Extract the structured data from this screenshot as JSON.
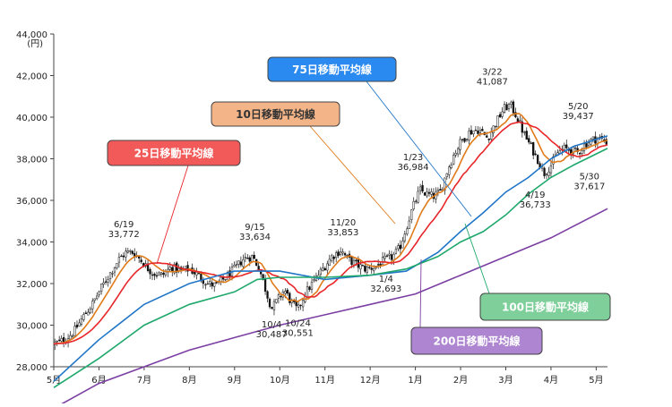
{
  "chart_data": {
    "type": "line",
    "ylabel": "(円)",
    "ylim": [
      28000,
      44000
    ],
    "yticks": [
      "28,000",
      "30,000",
      "32,000",
      "34,000",
      "36,000",
      "38,000",
      "40,000",
      "42,000",
      "44,000"
    ],
    "ytick_values": [
      28000,
      30000,
      32000,
      34000,
      36000,
      38000,
      40000,
      42000,
      44000
    ],
    "xlim_months": [
      0,
      12.25
    ],
    "xticks": [
      "5月",
      "6月",
      "7月",
      "8月",
      "9月",
      "10月",
      "11月",
      "12月",
      "1月",
      "2月",
      "3月",
      "4月",
      "5月"
    ],
    "price_points": [
      [
        0.0,
        29100
      ],
      [
        0.25,
        29300
      ],
      [
        0.45,
        29700
      ],
      [
        0.65,
        30400
      ],
      [
        0.85,
        31000
      ],
      [
        1.05,
        31800
      ],
      [
        1.25,
        32500
      ],
      [
        1.45,
        33200
      ],
      [
        1.6,
        33500
      ],
      [
        1.75,
        33500
      ],
      [
        1.9,
        33200
      ],
      [
        2.05,
        32800
      ],
      [
        2.2,
        32500
      ],
      [
        2.4,
        32400
      ],
      [
        2.6,
        32800
      ],
      [
        2.8,
        32600
      ],
      [
        3.0,
        32700
      ],
      [
        3.2,
        32400
      ],
      [
        3.4,
        32000
      ],
      [
        3.6,
        31900
      ],
      [
        3.8,
        32300
      ],
      [
        4.0,
        32700
      ],
      [
        4.2,
        33200
      ],
      [
        4.4,
        33300
      ],
      [
        4.55,
        32700
      ],
      [
        4.7,
        31600
      ],
      [
        4.82,
        30800
      ],
      [
        4.95,
        31200
      ],
      [
        5.1,
        31700
      ],
      [
        5.25,
        31100
      ],
      [
        5.4,
        30700
      ],
      [
        5.55,
        31500
      ],
      [
        5.75,
        32100
      ],
      [
        5.95,
        32700
      ],
      [
        6.15,
        33300
      ],
      [
        6.35,
        33600
      ],
      [
        6.5,
        33200
      ],
      [
        6.7,
        32900
      ],
      [
        6.9,
        32700
      ],
      [
        7.1,
        32800
      ],
      [
        7.3,
        33100
      ],
      [
        7.5,
        33300
      ],
      [
        7.65,
        33700
      ],
      [
        7.8,
        34700
      ],
      [
        7.95,
        35700
      ],
      [
        8.1,
        36500
      ],
      [
        8.25,
        36300
      ],
      [
        8.4,
        36200
      ],
      [
        8.55,
        36400
      ],
      [
        8.7,
        37400
      ],
      [
        8.85,
        38200
      ],
      [
        9.0,
        38800
      ],
      [
        9.2,
        39300
      ],
      [
        9.4,
        39400
      ],
      [
        9.6,
        39000
      ],
      [
        9.8,
        39800
      ],
      [
        9.95,
        40400
      ],
      [
        10.1,
        40600
      ],
      [
        10.25,
        40000
      ],
      [
        10.4,
        39200
      ],
      [
        10.55,
        38600
      ],
      [
        10.7,
        38000
      ],
      [
        10.85,
        37300
      ],
      [
        11.0,
        37700
      ],
      [
        11.15,
        38300
      ],
      [
        11.3,
        38500
      ],
      [
        11.45,
        38400
      ],
      [
        11.6,
        38300
      ],
      [
        11.75,
        38700
      ],
      [
        11.9,
        38900
      ],
      [
        12.05,
        39000
      ],
      [
        12.25,
        38800
      ]
    ],
    "series": [
      {
        "name": "10日移動平均線",
        "color": "#e07b1a",
        "lag": 0.25,
        "smooth": 3
      },
      {
        "name": "25日移動平均線",
        "color": "#e8262a",
        "lag": 0.6,
        "smooth": 6
      },
      {
        "name": "75日移動平均線",
        "color": "#2176c7",
        "points": [
          [
            0.0,
            27300
          ],
          [
            1.0,
            29300
          ],
          [
            2.0,
            31000
          ],
          [
            3.0,
            32000
          ],
          [
            4.0,
            32600
          ],
          [
            5.0,
            32600
          ],
          [
            6.0,
            32200
          ],
          [
            7.0,
            32400
          ],
          [
            7.8,
            32600
          ],
          [
            8.5,
            33500
          ],
          [
            9.0,
            34500
          ],
          [
            9.5,
            35400
          ],
          [
            10.0,
            36400
          ],
          [
            10.5,
            37100
          ],
          [
            11.0,
            38000
          ],
          [
            11.5,
            38600
          ],
          [
            12.25,
            39100
          ]
        ]
      },
      {
        "name": "100日移動平均線",
        "color": "#1fa86b",
        "points": [
          [
            0.0,
            27000
          ],
          [
            1.0,
            28400
          ],
          [
            2.0,
            30000
          ],
          [
            3.0,
            31000
          ],
          [
            4.0,
            31600
          ],
          [
            4.5,
            32200
          ],
          [
            5.0,
            32300
          ],
          [
            6.0,
            32300
          ],
          [
            7.0,
            32400
          ],
          [
            7.8,
            32700
          ],
          [
            8.5,
            33300
          ],
          [
            9.0,
            34000
          ],
          [
            9.5,
            34500
          ],
          [
            10.0,
            35300
          ],
          [
            10.5,
            36300
          ],
          [
            11.0,
            37100
          ],
          [
            11.5,
            37700
          ],
          [
            12.25,
            38500
          ]
        ]
      },
      {
        "name": "200日移動平均線",
        "color": "#7b3fa3",
        "points": [
          [
            0.0,
            26000
          ],
          [
            1.0,
            27200
          ],
          [
            2.0,
            28000
          ],
          [
            3.0,
            28800
          ],
          [
            4.0,
            29400
          ],
          [
            5.0,
            30000
          ],
          [
            6.0,
            30500
          ],
          [
            7.0,
            31000
          ],
          [
            8.0,
            31500
          ],
          [
            9.0,
            32400
          ],
          [
            10.0,
            33300
          ],
          [
            11.0,
            34200
          ],
          [
            12.25,
            35600
          ]
        ]
      }
    ],
    "annotations": [
      {
        "date": "6/19",
        "value": "33,772",
        "x": 1.55,
        "y": 33772,
        "pos": "above"
      },
      {
        "date": "9/15",
        "value": "33,634",
        "x": 4.45,
        "y": 33634,
        "pos": "above"
      },
      {
        "date": "10/4",
        "value": "30,487",
        "x": 4.82,
        "y": 30487,
        "pos": "below"
      },
      {
        "date": "10/24",
        "value": "30,551",
        "x": 5.4,
        "y": 30551,
        "pos": "below"
      },
      {
        "date": "11/20",
        "value": "33,853",
        "x": 6.4,
        "y": 33853,
        "pos": "above"
      },
      {
        "date": "1/4",
        "value": "32,693",
        "x": 7.35,
        "y": 32693,
        "pos": "below"
      },
      {
        "date": "1/23",
        "value": "36,984",
        "x": 7.95,
        "y": 36984,
        "pos": "above"
      },
      {
        "date": "3/22",
        "value": "41,087",
        "x": 9.7,
        "y": 41087,
        "pos": "above"
      },
      {
        "date": "4/19",
        "value": "36,733",
        "x": 10.65,
        "y": 36733,
        "pos": "below"
      },
      {
        "date": "5/20",
        "value": "39,437",
        "x": 11.6,
        "y": 39437,
        "pos": "above"
      },
      {
        "date": "5/30",
        "value": "37,617",
        "x": 11.85,
        "y": 37617,
        "pos": "below"
      }
    ],
    "label_boxes": [
      {
        "text": "75日移動平均線",
        "fill": "#2a8af0",
        "text_color": "#ffffff",
        "target_series": 2
      },
      {
        "text": "10日移動平均線",
        "fill": "#f3b487",
        "text_color": "#333333",
        "target_series": 0
      },
      {
        "text": "25日移動平均線",
        "fill": "#f25a5a",
        "text_color": "#ffffff",
        "target_series": 1
      },
      {
        "text": "100日移動平均線",
        "fill": "#7fcf9a",
        "text_color": "#ffffff",
        "target_series": 3
      },
      {
        "text": "200日移動平均線",
        "fill": "#ad85d0",
        "text_color": "#ffffff",
        "target_series": 4
      }
    ]
  }
}
